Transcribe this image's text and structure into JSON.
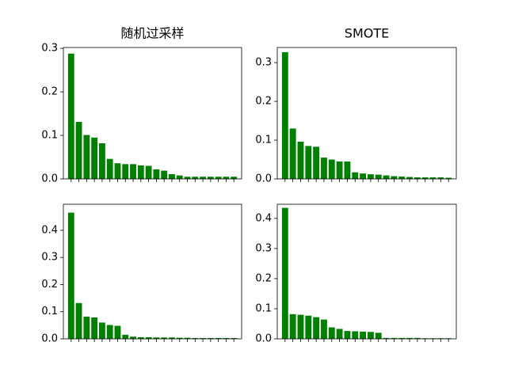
{
  "chart_data": [
    {
      "type": "bar",
      "title": "随机过采样",
      "color": "#008000",
      "categories": [
        null,
        null,
        null,
        null,
        null,
        null,
        null,
        null,
        null,
        null,
        null,
        null,
        null,
        null,
        null,
        null,
        null,
        null,
        null,
        null,
        null,
        null
      ],
      "values": [
        0.288,
        0.131,
        0.101,
        0.095,
        0.082,
        0.046,
        0.036,
        0.034,
        0.034,
        0.031,
        0.03,
        0.022,
        0.019,
        0.011,
        0.008,
        0.005,
        0.005,
        0.005,
        0.005,
        0.005,
        0.005,
        0.005
      ],
      "ylim": [
        0,
        0.302
      ],
      "yticks": [
        {
          "value": 0,
          "label": "0.0"
        },
        0.1,
        0.2,
        0.3
      ]
    },
    {
      "type": "bar",
      "title": "SMOTE",
      "color": "#008000",
      "categories": [
        null,
        null,
        null,
        null,
        null,
        null,
        null,
        null,
        null,
        null,
        null,
        null,
        null,
        null,
        null,
        null,
        null,
        null,
        null,
        null,
        null,
        null
      ],
      "values": [
        0.327,
        0.13,
        0.096,
        0.085,
        0.083,
        0.055,
        0.05,
        0.045,
        0.045,
        0.017,
        0.014,
        0.012,
        0.011,
        0.009,
        0.007,
        0.006,
        0.005,
        0.004,
        0.004,
        0.004,
        0.004,
        0.003
      ],
      "ylim": [
        0,
        0.339
      ],
      "yticks": [
        {
          "value": 0,
          "label": "0.0"
        },
        0.1,
        0.2,
        0.3
      ]
    },
    {
      "type": "bar",
      "color": "#008000",
      "categories": [
        null,
        null,
        null,
        null,
        null,
        null,
        null,
        null,
        null,
        null,
        null,
        null,
        null,
        null,
        null,
        null,
        null,
        null,
        null,
        null,
        null,
        null
      ],
      "values": [
        0.465,
        0.132,
        0.082,
        0.079,
        0.06,
        0.051,
        0.048,
        0.015,
        0.008,
        0.006,
        0.006,
        0.005,
        0.005,
        0.005,
        0.004,
        0.004,
        0.003,
        0.003,
        0.003,
        0.003,
        0.003,
        0.003
      ],
      "ylim": [
        0,
        0.496
      ],
      "yticks": [
        {
          "value": 0,
          "label": "0.0"
        },
        0.1,
        0.2,
        0.3,
        0.4
      ]
    },
    {
      "type": "bar",
      "color": "#008000",
      "categories": [
        null,
        null,
        null,
        null,
        null,
        null,
        null,
        null,
        null,
        null,
        null,
        null,
        null,
        null,
        null,
        null,
        null,
        null,
        null,
        null,
        null,
        null
      ],
      "values": [
        0.435,
        0.082,
        0.08,
        0.077,
        0.072,
        0.064,
        0.038,
        0.033,
        0.026,
        0.025,
        0.024,
        0.023,
        0.02,
        0.003,
        0.003,
        0.003,
        0.003,
        0.003,
        0.002,
        0.002,
        0.002,
        0.002
      ],
      "ylim": [
        0,
        0.447
      ],
      "yticks": [
        {
          "value": 0,
          "label": "0.0"
        },
        0.1,
        0.2,
        0.3,
        0.4
      ]
    }
  ]
}
